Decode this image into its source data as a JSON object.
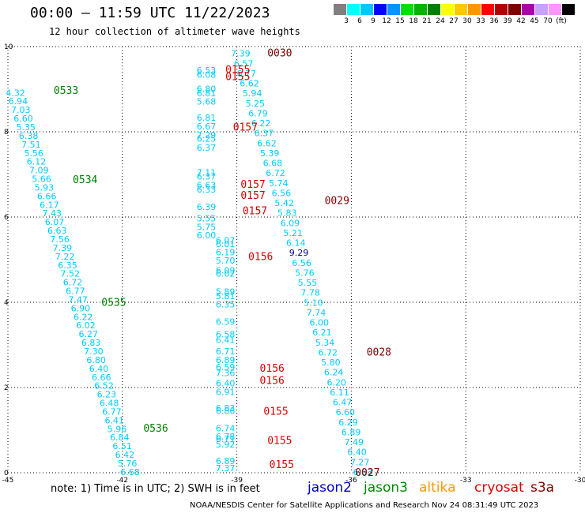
{
  "header": {
    "title": "00:00 – 11:59 UTC 11/22/2023",
    "subtitle": "12 hour collection of altimeter wave heights"
  },
  "legend": {
    "colors": [
      "#808080",
      "#00ffff",
      "#00c8ff",
      "#0000ff",
      "#0096ff",
      "#00e000",
      "#00b400",
      "#008000",
      "#ffff00",
      "#ffc800",
      "#ff9600",
      "#ff0000",
      "#b40000",
      "#800000",
      "#aa00aa",
      "#c8a0ff",
      "#ff96ff",
      "#000000"
    ],
    "labels": [
      "3",
      "6",
      "9",
      "12",
      "15",
      "18",
      "21",
      "24",
      "27",
      "30",
      "33",
      "36",
      "39",
      "42",
      "45",
      "70",
      "(ft)"
    ]
  },
  "footer": {
    "note": "note:  1) Time is in UTC;  2) SWH is in feet",
    "satellites": [
      {
        "name": "jason2",
        "color": "#0000cc"
      },
      {
        "name": "jason3",
        "color": "#008800"
      },
      {
        "name": "altika",
        "color": "#ff9900"
      },
      {
        "name": "cryosat",
        "color": "#dd0000"
      },
      {
        "name": "s3a",
        "color": "#800000"
      }
    ],
    "credit": "NOAA/NESDIS Center for Satellite Applications and Research    Nov 24 08:31:49 UTC 2023"
  },
  "chart_data": {
    "type": "scatter",
    "xlim": [
      -45,
      -30
    ],
    "ylim": [
      0,
      10
    ],
    "x_ticks": [
      -45,
      -42,
      -39,
      -36,
      -33,
      -30
    ],
    "y_ticks": [
      0,
      2,
      4,
      6,
      8,
      10
    ],
    "x_tick_labels": [
      "-45",
      "-42",
      "-39",
      "-36",
      "-33",
      "-30"
    ],
    "y_tick_labels": [
      "0",
      "2",
      "4",
      "6",
      "8",
      "10"
    ],
    "grid": true,
    "point_color": "#00ccff",
    "dark_color": "#000080",
    "track_label_colors": {
      "jason3": "#008000",
      "cryosat": "#dd0000",
      "s3a": "#800000"
    },
    "tracks": [
      {
        "start": [
          -44.8,
          8.92
        ],
        "end": [
          -41.8,
          0.02
        ],
        "values": [
          "4.32",
          "6.94",
          "7.03",
          "6.60",
          "5.35",
          "6.38",
          "7.51",
          "5.56",
          "6.12",
          "7.09",
          "5.66",
          "5.93",
          "6.66",
          "6.17",
          "7.43",
          "6.07",
          "6.63",
          "7.56",
          "7.39",
          "7.22",
          "6.35",
          "7.52",
          "6.72",
          "6.77",
          "7.47",
          "6.90",
          "6.22",
          "6.02",
          "6.27",
          "6.83",
          "7.30",
          "6.80",
          "6.40",
          "6.66",
          "6.52",
          "6.23",
          "6.48",
          "6.77",
          "6.41",
          "5.96",
          "6.84",
          "6.51",
          "6.42",
          "5.76",
          "6.68"
        ]
      },
      {
        "start": [
          -38.9,
          9.84
        ],
        "end": [
          -35.7,
          0.02
        ],
        "values": [
          "7.39",
          "6.57",
          "6.77",
          "6.62",
          "5.94",
          "5.25",
          "6.79",
          "6.22",
          "6.37",
          "6.62",
          "5.39",
          "6.68",
          "6.72",
          "5.74",
          "6.56",
          "5.42",
          "5.83",
          "6.09",
          "5.21",
          "6.14",
          "9.29",
          "6.56",
          "5.76",
          "5.55",
          "7.78",
          "5.10",
          "7.74",
          "6.00",
          "6.21",
          "5.34",
          "6.72",
          "5.80",
          "6.24",
          "6.20",
          "6.11",
          "6.47",
          "6.60",
          "6.29",
          "6.89",
          "7.49",
          "6.40",
          "7.27",
          "6.63"
        ]
      }
    ],
    "dark_values": [
      "9.29"
    ],
    "clusters": [
      {
        "x": -39.8,
        "values": [
          {
            "y": 9.44,
            "v": "6.53"
          },
          {
            "y": 9.34,
            "v": "6.08"
          },
          {
            "y": 9.01,
            "v": "6.80"
          },
          {
            "y": 8.91,
            "v": "6.81"
          },
          {
            "y": 8.71,
            "v": "5.68"
          },
          {
            "y": 8.33,
            "v": "6.81"
          },
          {
            "y": 8.13,
            "v": "6.67"
          },
          {
            "y": 7.93,
            "v": "7.29"
          },
          {
            "y": 7.84,
            "v": "6.25"
          },
          {
            "y": 7.63,
            "v": "6.37"
          },
          {
            "y": 7.05,
            "v": "7.11"
          },
          {
            "y": 6.95,
            "v": "6.37"
          },
          {
            "y": 6.75,
            "v": "6.63"
          },
          {
            "y": 6.65,
            "v": "6.33"
          },
          {
            "y": 6.24,
            "v": "6.39"
          },
          {
            "y": 5.97,
            "v": "5.55"
          },
          {
            "y": 5.77,
            "v": "5.75"
          },
          {
            "y": 5.57,
            "v": "6.00"
          }
        ]
      },
      {
        "x": -39.3,
        "values": [
          {
            "y": 5.45,
            "v": "6.07"
          },
          {
            "y": 5.37,
            "v": "6.01"
          },
          {
            "y": 5.18,
            "v": "6.19"
          },
          {
            "y": 4.98,
            "v": "5.70"
          },
          {
            "y": 4.75,
            "v": "6.09"
          },
          {
            "y": 4.68,
            "v": "6.02"
          },
          {
            "y": 4.25,
            "v": "5.89"
          },
          {
            "y": 4.15,
            "v": "5.81"
          },
          {
            "y": 3.95,
            "v": "6.35"
          },
          {
            "y": 3.55,
            "v": "6.59"
          },
          {
            "y": 3.25,
            "v": "6.58"
          },
          {
            "y": 3.12,
            "v": "6.41"
          },
          {
            "y": 2.85,
            "v": "6.71"
          },
          {
            "y": 2.65,
            "v": "6.89"
          },
          {
            "y": 2.48,
            "v": "6.59"
          },
          {
            "y": 2.34,
            "v": "7.36"
          },
          {
            "y": 2.1,
            "v": "6.40"
          },
          {
            "y": 1.9,
            "v": "6.91"
          },
          {
            "y": 1.52,
            "v": "6.83"
          },
          {
            "y": 1.45,
            "v": "6.86"
          },
          {
            "y": 1.05,
            "v": "6.74"
          },
          {
            "y": 0.85,
            "v": "6.78"
          },
          {
            "y": 0.8,
            "v": "6.71"
          },
          {
            "y": 0.67,
            "v": "5.92"
          },
          {
            "y": 0.28,
            "v": "6.89"
          },
          {
            "y": 0.11,
            "v": "7.37"
          }
        ]
      }
    ],
    "track_labels": [
      {
        "text": "0533",
        "x": -43.8,
        "y": 8.98,
        "sat": "jason3"
      },
      {
        "text": "0534",
        "x": -43.3,
        "y": 6.89,
        "sat": "jason3"
      },
      {
        "text": "0535",
        "x": -42.55,
        "y": 4.01,
        "sat": "jason3"
      },
      {
        "text": "0536",
        "x": -41.45,
        "y": 1.06,
        "sat": "jason3"
      },
      {
        "text": "0030",
        "x": -38.2,
        "y": 9.86,
        "sat": "s3a"
      },
      {
        "text": "0029",
        "x": -36.7,
        "y": 6.4,
        "sat": "s3a"
      },
      {
        "text": "0028",
        "x": -35.6,
        "y": 2.84,
        "sat": "s3a"
      },
      {
        "text": "0027",
        "x": -35.9,
        "y": 0.02,
        "sat": "s3a"
      },
      {
        "text": "0155",
        "x": -39.3,
        "y": 9.47,
        "sat": "cryosat"
      },
      {
        "text": "0155",
        "x": -39.3,
        "y": 9.31,
        "sat": "cryosat"
      },
      {
        "text": "0157",
        "x": -39.1,
        "y": 8.12,
        "sat": "cryosat"
      },
      {
        "text": "0157",
        "x": -38.9,
        "y": 6.78,
        "sat": "cryosat"
      },
      {
        "text": "0157",
        "x": -38.9,
        "y": 6.52,
        "sat": "cryosat"
      },
      {
        "text": "0157",
        "x": -38.85,
        "y": 6.16,
        "sat": "cryosat"
      },
      {
        "text": "0156",
        "x": -38.7,
        "y": 5.08,
        "sat": "cryosat"
      },
      {
        "text": "0156",
        "x": -38.4,
        "y": 2.46,
        "sat": "cryosat"
      },
      {
        "text": "0156",
        "x": -38.4,
        "y": 2.18,
        "sat": "cryosat"
      },
      {
        "text": "0155",
        "x": -38.3,
        "y": 1.45,
        "sat": "cryosat"
      },
      {
        "text": "0155",
        "x": -38.2,
        "y": 0.77,
        "sat": "cryosat"
      },
      {
        "text": "0155",
        "x": -38.15,
        "y": 0.2,
        "sat": "cryosat"
      }
    ]
  }
}
